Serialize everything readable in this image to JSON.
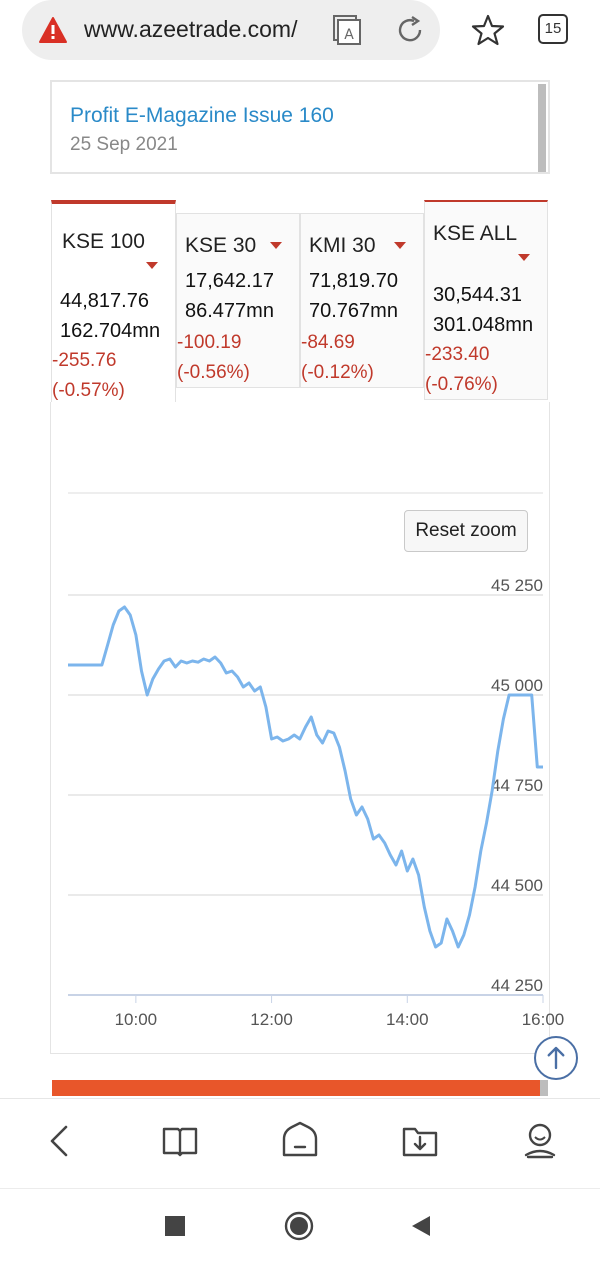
{
  "browser": {
    "url": "www.azeetrade.com/",
    "tabs_count": "15",
    "icons": [
      "warning-icon",
      "reader-mode-icon",
      "reload-icon",
      "star-icon",
      "tabs-icon"
    ]
  },
  "magazine": {
    "title": "Profit E-Magazine Issue 160",
    "date": "25 Sep 2021"
  },
  "indices": [
    {
      "name": "KSE 100",
      "value": "44,817.76",
      "volume": "162.704mn",
      "change": "-255.76",
      "change_pct": "(-0.57%)",
      "active": true
    },
    {
      "name": "KSE 30",
      "value": "17,642.17",
      "volume": "86.477mn",
      "change": "-100.19",
      "change_pct": "(-0.56%)",
      "active": false
    },
    {
      "name": "KMI 30",
      "value": "71,819.70",
      "volume": "70.767mn",
      "change": "-84.69",
      "change_pct": "(-0.12%)",
      "active": false
    },
    {
      "name": "KSE ALL",
      "value": "30,544.31",
      "volume": "301.048mn",
      "change": "-233.40",
      "change_pct": "(-0.76%)",
      "active": false
    }
  ],
  "chart": {
    "reset_label": "Reset zoom"
  },
  "chart_data": {
    "type": "line",
    "title": "",
    "xlabel": "",
    "ylabel": "",
    "ylim": [
      44250,
      45250
    ],
    "y_ticks": [
      "44 250",
      "44 500",
      "44 750",
      "45 000",
      "45 250"
    ],
    "x_ticks": [
      "10:00",
      "12:00",
      "14:00",
      "16:00"
    ],
    "xlim": [
      "09:00",
      "16:00"
    ],
    "grid": true,
    "color": "#7cb5ec",
    "series": [
      {
        "points": [
          [
            "09:00",
            45075
          ],
          [
            "09:30",
            45075
          ],
          [
            "09:35",
            45125
          ],
          [
            "09:40",
            45175
          ],
          [
            "09:45",
            45210
          ],
          [
            "09:50",
            45220
          ],
          [
            "09:55",
            45200
          ],
          [
            "10:00",
            45150
          ],
          [
            "10:05",
            45060
          ],
          [
            "10:10",
            45000
          ],
          [
            "10:15",
            45040
          ],
          [
            "10:20",
            45065
          ],
          [
            "10:25",
            45085
          ],
          [
            "10:30",
            45090
          ],
          [
            "10:35",
            45070
          ],
          [
            "10:40",
            45085
          ],
          [
            "10:45",
            45080
          ],
          [
            "10:50",
            45085
          ],
          [
            "10:55",
            45082
          ],
          [
            "11:00",
            45090
          ],
          [
            "11:05",
            45085
          ],
          [
            "11:10",
            45095
          ],
          [
            "11:15",
            45080
          ],
          [
            "11:20",
            45055
          ],
          [
            "11:25",
            45060
          ],
          [
            "11:30",
            45045
          ],
          [
            "11:35",
            45020
          ],
          [
            "11:40",
            45030
          ],
          [
            "11:45",
            45010
          ],
          [
            "11:50",
            45020
          ],
          [
            "11:55",
            44970
          ],
          [
            "12:00",
            44890
          ],
          [
            "12:05",
            44895
          ],
          [
            "12:10",
            44885
          ],
          [
            "12:15",
            44890
          ],
          [
            "12:20",
            44900
          ],
          [
            "12:25",
            44890
          ],
          [
            "12:30",
            44920
          ],
          [
            "12:35",
            44945
          ],
          [
            "12:40",
            44900
          ],
          [
            "12:45",
            44880
          ],
          [
            "12:50",
            44910
          ],
          [
            "12:55",
            44905
          ],
          [
            "13:00",
            44870
          ],
          [
            "13:05",
            44810
          ],
          [
            "13:10",
            44740
          ],
          [
            "13:15",
            44700
          ],
          [
            "13:20",
            44720
          ],
          [
            "13:25",
            44690
          ],
          [
            "13:30",
            44640
          ],
          [
            "13:35",
            44650
          ],
          [
            "13:40",
            44630
          ],
          [
            "13:45",
            44600
          ],
          [
            "13:50",
            44575
          ],
          [
            "13:55",
            44610
          ],
          [
            "14:00",
            44560
          ],
          [
            "14:05",
            44590
          ],
          [
            "14:10",
            44550
          ],
          [
            "14:15",
            44470
          ],
          [
            "14:20",
            44410
          ],
          [
            "14:25",
            44370
          ],
          [
            "14:30",
            44380
          ],
          [
            "14:35",
            44440
          ],
          [
            "14:40",
            44410
          ],
          [
            "14:45",
            44370
          ],
          [
            "14:50",
            44400
          ],
          [
            "14:55",
            44450
          ],
          [
            "15:00",
            44520
          ],
          [
            "15:05",
            44610
          ],
          [
            "15:10",
            44680
          ],
          [
            "15:15",
            44760
          ],
          [
            "15:20",
            44860
          ],
          [
            "15:25",
            44940
          ],
          [
            "15:30",
            45000
          ],
          [
            "15:35",
            45000
          ],
          [
            "15:40",
            45000
          ],
          [
            "15:45",
            45000
          ],
          [
            "15:50",
            45000
          ],
          [
            "15:55",
            44820
          ],
          [
            "16:00",
            44820
          ]
        ]
      }
    ]
  }
}
